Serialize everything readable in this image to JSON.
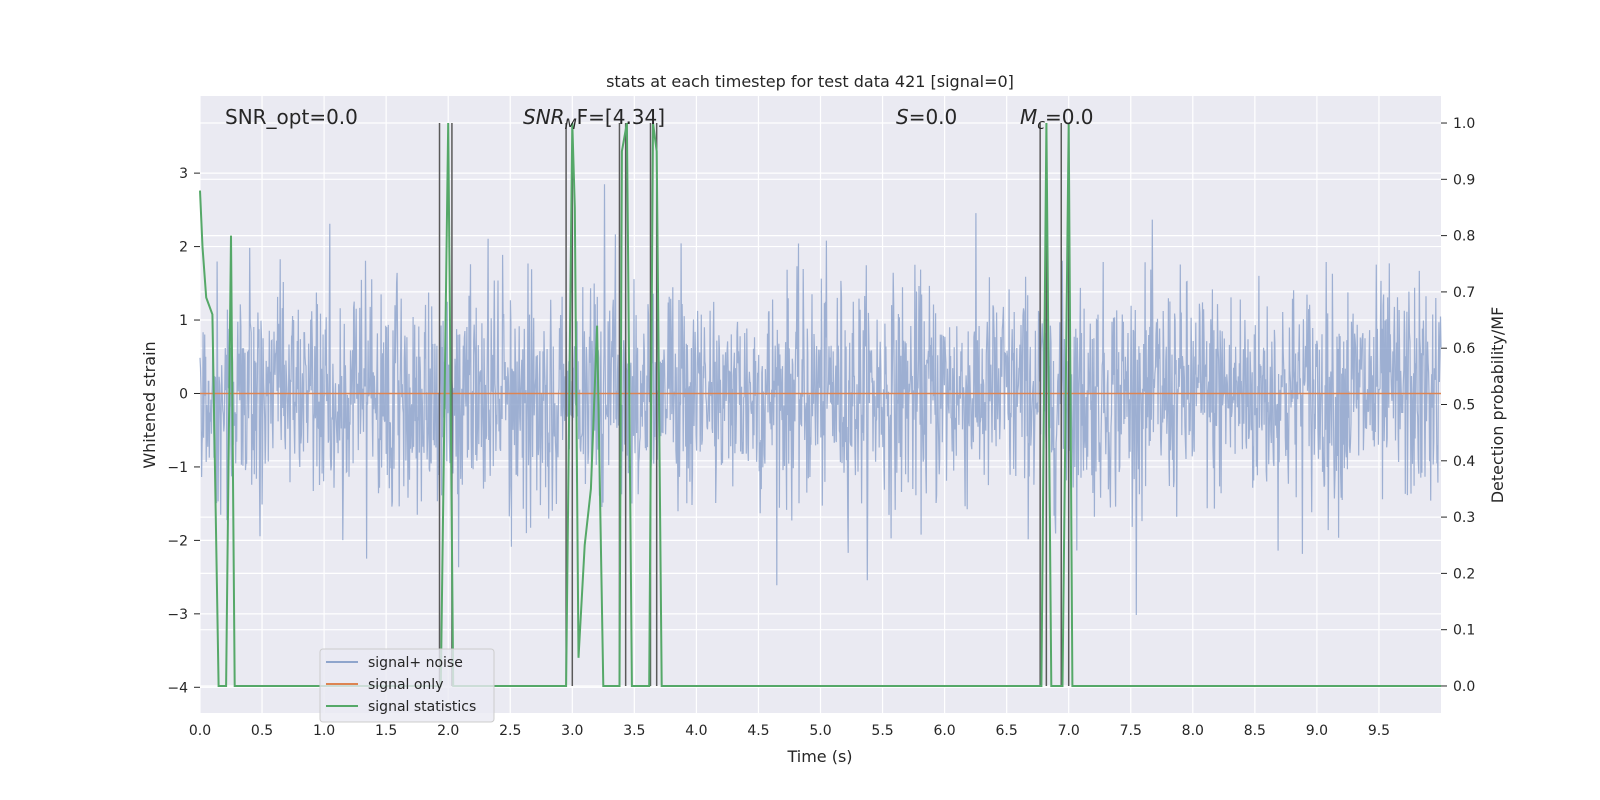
{
  "chart_data": {
    "type": "line",
    "title": "stats at each timestep for test data 421 [signal=0]",
    "xlabel": "Time (s)",
    "ylabel": "Whitened strain",
    "y2label": "Detection probability/MF",
    "xlim": [
      0,
      10
    ],
    "ylim": [
      -4.35,
      4.05
    ],
    "y2lim": [
      -0.048,
      1.048
    ],
    "grid": true,
    "legend_position": "lower-left",
    "x_ticks": [
      "0.0",
      "0.5",
      "1.0",
      "1.5",
      "2.0",
      "2.5",
      "3.0",
      "3.5",
      "4.0",
      "4.5",
      "5.0",
      "5.5",
      "6.0",
      "6.5",
      "7.0",
      "7.5",
      "8.0",
      "8.5",
      "9.0",
      "9.5"
    ],
    "x_tick_values": [
      0,
      0.5,
      1,
      1.5,
      2,
      2.5,
      3,
      3.5,
      4,
      4.5,
      5,
      5.5,
      6,
      6.5,
      7,
      7.5,
      8,
      8.5,
      9,
      9.5
    ],
    "y_ticks": [
      "3",
      "2",
      "1",
      "0",
      "−1",
      "−2",
      "−3",
      "−4"
    ],
    "y_tick_values": [
      3,
      2,
      1,
      0,
      -1,
      -2,
      -3,
      -4
    ],
    "y2_ticks": [
      "1.0",
      "0.9",
      "0.8",
      "0.7",
      "0.6",
      "0.5",
      "0.4",
      "0.3",
      "0.2",
      "0.1",
      "0.0"
    ],
    "y2_tick_values": [
      1.0,
      0.9,
      0.8,
      0.7,
      0.6,
      0.5,
      0.4,
      0.3,
      0.2,
      0.1,
      0.0
    ],
    "annotations": {
      "snr_opt": "SNR_opt=0.0",
      "snr_mf_main": "SNR",
      "snr_mf_sub": "M",
      "snr_mf_rest": "F=[4.34]",
      "s_sym": "S",
      "s_rest": "=0.0",
      "mc_main": "M",
      "mc_sub": "c",
      "mc_rest": "=0.0"
    },
    "series": [
      {
        "name": "signal+ noise",
        "color": "#8fa5cc",
        "noise_amplitude": 0.75,
        "noise_peak": 3.6
      },
      {
        "name": "signal only",
        "color": "#dd8452",
        "value": 0.0
      },
      {
        "name": "signal statistics",
        "color": "#55a868",
        "x": [
          0,
          0.02,
          0.05,
          0.1,
          0.15,
          0.18,
          0.21,
          0.25,
          0.28,
          0.31,
          1.88,
          1.94,
          2.0,
          2.04,
          2.08,
          2.92,
          2.95,
          3.0,
          3.02,
          3.05,
          3.1,
          3.15,
          3.2,
          3.25,
          3.3,
          3.38,
          3.4,
          3.44,
          3.48,
          3.5,
          3.6,
          3.62,
          3.65,
          3.68,
          3.72,
          3.75,
          6.75,
          6.78,
          6.82,
          6.86,
          6.9,
          6.95,
          7.0,
          7.03,
          7.07,
          10
        ],
        "y": [
          0.88,
          0.78,
          0.69,
          0.66,
          0.0,
          0.0,
          0.0,
          0.8,
          0.0,
          0.0,
          0.0,
          0.0,
          1.0,
          0.0,
          0.0,
          0.0,
          0.0,
          1.0,
          0.85,
          0.05,
          0.25,
          0.35,
          0.64,
          0.0,
          0.0,
          0.0,
          0.95,
          1.0,
          0.0,
          0.0,
          0.0,
          0.0,
          1.0,
          0.95,
          0.0,
          0.0,
          0.0,
          0.0,
          1.0,
          0.0,
          0.0,
          0.0,
          1.0,
          0.0,
          0.0,
          0.0
        ]
      },
      {
        "name": "",
        "color": "#5a5a5a",
        "vlines": [
          1.93,
          2.03,
          2.95,
          3.0,
          3.38,
          3.43,
          3.63,
          3.68,
          6.77,
          6.82,
          6.94,
          7.0
        ]
      }
    ]
  }
}
